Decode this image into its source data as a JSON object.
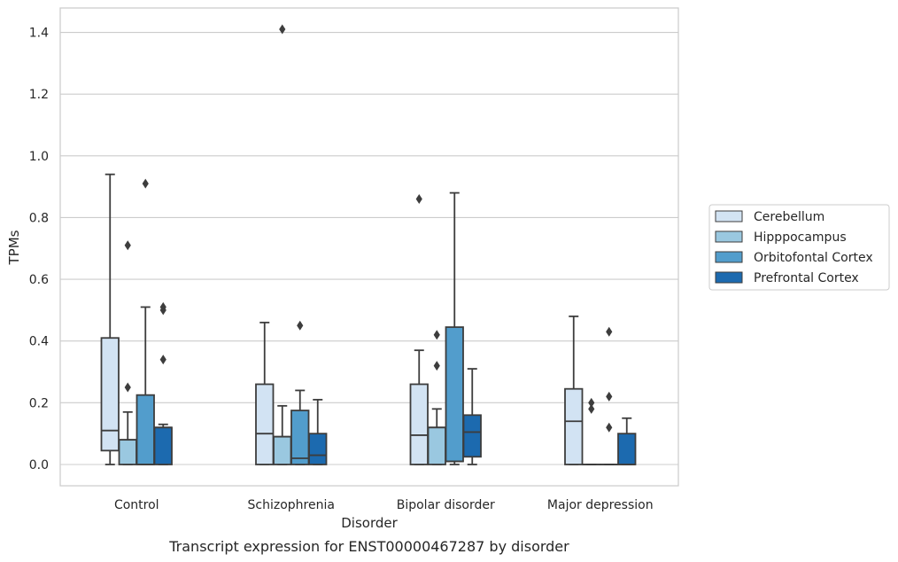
{
  "chart_data": {
    "type": "boxplot",
    "caption": "Transcript expression for ENST00000467287 by disorder",
    "xlabel": "Disorder",
    "ylabel": "TPMs",
    "ylim": [
      -0.07,
      1.48
    ],
    "yticks": [
      0.0,
      0.2,
      0.4,
      0.6,
      0.8,
      1.0,
      1.2,
      1.4
    ],
    "ytick_labels": [
      "0.0",
      "0.2",
      "0.4",
      "0.6",
      "0.8",
      "1.0",
      "1.2",
      "1.4"
    ],
    "grid": "horizontal",
    "legend_position": "right",
    "categories": [
      "Control",
      "Schizophrenia",
      "Bipolar disorder",
      "Major depression"
    ],
    "series": [
      {
        "name": "Cerebellum",
        "color": "#d2e3f3",
        "boxes": [
          {
            "whislo": 0.0,
            "q1": 0.045,
            "med": 0.11,
            "q3": 0.41,
            "whishi": 0.94,
            "fliers": []
          },
          {
            "whislo": 0.0,
            "q1": 0.0,
            "med": 0.1,
            "q3": 0.26,
            "whishi": 0.46,
            "fliers": []
          },
          {
            "whislo": 0.0,
            "q1": 0.0,
            "med": 0.095,
            "q3": 0.26,
            "whishi": 0.37,
            "fliers": [
              0.86
            ]
          },
          {
            "whislo": 0.0,
            "q1": 0.0,
            "med": 0.14,
            "q3": 0.245,
            "whishi": 0.48,
            "fliers": []
          }
        ]
      },
      {
        "name": "Hipppocampus",
        "color": "#9ac8e0",
        "boxes": [
          {
            "whislo": 0.0,
            "q1": 0.0,
            "med": 0.08,
            "q3": 0.08,
            "whishi": 0.17,
            "fliers": [
              0.25,
              0.71
            ]
          },
          {
            "whislo": 0.0,
            "q1": 0.0,
            "med": 0.09,
            "q3": 0.09,
            "whishi": 0.19,
            "fliers": [
              1.41
            ]
          },
          {
            "whislo": 0.0,
            "q1": 0.0,
            "med": 0.12,
            "q3": 0.12,
            "whishi": 0.18,
            "fliers": [
              0.32,
              0.42
            ]
          },
          {
            "whislo": 0.0,
            "q1": 0.0,
            "med": 0.0,
            "q3": 0.0,
            "whishi": 0.0,
            "fliers": [
              0.18,
              0.2
            ]
          }
        ]
      },
      {
        "name": "Orbitofontal Cortex",
        "color": "#529dcc",
        "boxes": [
          {
            "whislo": 0.0,
            "q1": 0.0,
            "med": 0.0,
            "q3": 0.225,
            "whishi": 0.51,
            "fliers": [
              0.91
            ]
          },
          {
            "whislo": 0.0,
            "q1": 0.0,
            "med": 0.02,
            "q3": 0.175,
            "whishi": 0.24,
            "fliers": [
              0.45
            ]
          },
          {
            "whislo": 0.0,
            "q1": 0.01,
            "med": 0.01,
            "q3": 0.445,
            "whishi": 0.88,
            "fliers": []
          },
          {
            "whislo": 0.0,
            "q1": 0.0,
            "med": 0.0,
            "q3": 0.0,
            "whishi": 0.0,
            "fliers": [
              0.12,
              0.22,
              0.43
            ]
          }
        ]
      },
      {
        "name": "Prefrontal Cortex",
        "color": "#1c6aaf",
        "boxes": [
          {
            "whislo": 0.0,
            "q1": 0.0,
            "med": 0.12,
            "q3": 0.12,
            "whishi": 0.13,
            "fliers": [
              0.34,
              0.5,
              0.51
            ]
          },
          {
            "whislo": 0.0,
            "q1": 0.0,
            "med": 0.03,
            "q3": 0.1,
            "whishi": 0.21,
            "fliers": []
          },
          {
            "whislo": 0.0,
            "q1": 0.025,
            "med": 0.105,
            "q3": 0.16,
            "whishi": 0.31,
            "fliers": []
          },
          {
            "whislo": 0.0,
            "q1": 0.0,
            "med": 0.0,
            "q3": 0.1,
            "whishi": 0.15,
            "fliers": []
          }
        ]
      }
    ]
  }
}
